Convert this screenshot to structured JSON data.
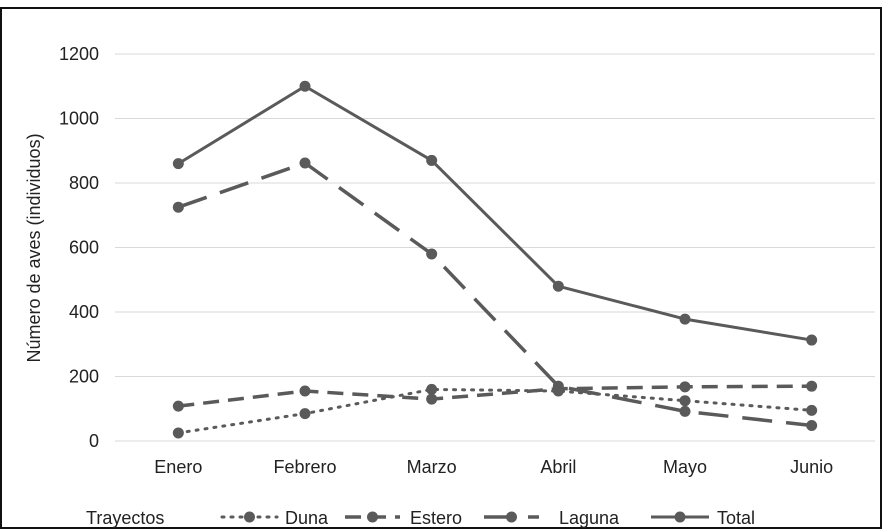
{
  "chart_data": {
    "type": "line",
    "title": "",
    "xlabel": "",
    "ylabel": "Número de aves (individuos)",
    "categories": [
      "Enero",
      "Febrero",
      "Marzo",
      "Abril",
      "Mayo",
      "Junio"
    ],
    "ylim": [
      0,
      1200
    ],
    "yticks": [
      "0",
      "200",
      "400",
      "600",
      "800",
      "1000",
      "1200"
    ],
    "grid": true,
    "legend": {
      "title": "Trayectos",
      "position": "bottom"
    },
    "series": [
      {
        "name": "Duna",
        "style": "dotted",
        "values": [
          25,
          85,
          160,
          155,
          125,
          95
        ]
      },
      {
        "name": "Estero",
        "style": "dashed",
        "values": [
          108,
          155,
          130,
          162,
          168,
          170
        ]
      },
      {
        "name": "Laguna",
        "style": "long-dash",
        "values": [
          725,
          862,
          580,
          170,
          92,
          48
        ]
      },
      {
        "name": "Total",
        "style": "solid",
        "values": [
          860,
          1100,
          870,
          480,
          378,
          313
        ]
      }
    ],
    "colors": {
      "line": "#5a5a5a",
      "grid": "#d9d9d9",
      "frame": "#111111"
    }
  }
}
